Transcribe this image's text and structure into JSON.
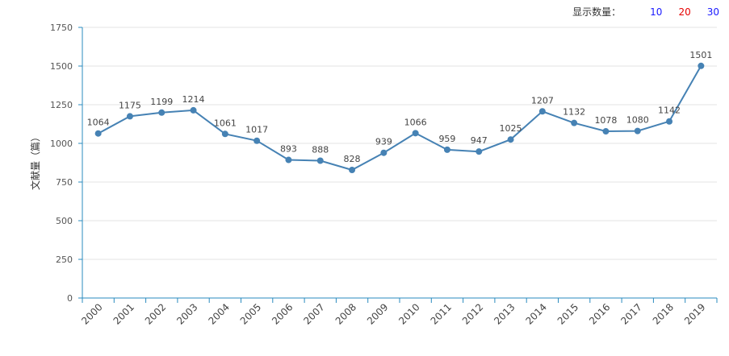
{
  "controls": {
    "label": "显示数量：",
    "options": [
      {
        "label": "10",
        "color": "#1a1aff"
      },
      {
        "label": "20",
        "color": "#e60000"
      },
      {
        "label": "30",
        "color": "#1a1aff"
      }
    ]
  },
  "chart_data": {
    "type": "line",
    "title": "",
    "xlabel": "",
    "ylabel": "文献量（篇）",
    "ylim": [
      0,
      1750
    ],
    "yticks": [
      0,
      250,
      500,
      750,
      1000,
      1250,
      1500,
      1750
    ],
    "grid": true,
    "categories": [
      "2000",
      "2001",
      "2002",
      "2003",
      "2004",
      "2005",
      "2006",
      "2007",
      "2008",
      "2009",
      "2010",
      "2011",
      "2012",
      "2013",
      "2014",
      "2015",
      "2016",
      "2017",
      "2018",
      "2019"
    ],
    "series": [
      {
        "values": [
          1064,
          1175,
          1199,
          1214,
          1061,
          1017,
          893,
          888,
          828,
          939,
          1066,
          959,
          947,
          1025,
          1207,
          1132,
          1078,
          1080,
          1142,
          1501
        ]
      }
    ],
    "line_color": "#4682b4",
    "axis_color": "#2a8bbf"
  }
}
